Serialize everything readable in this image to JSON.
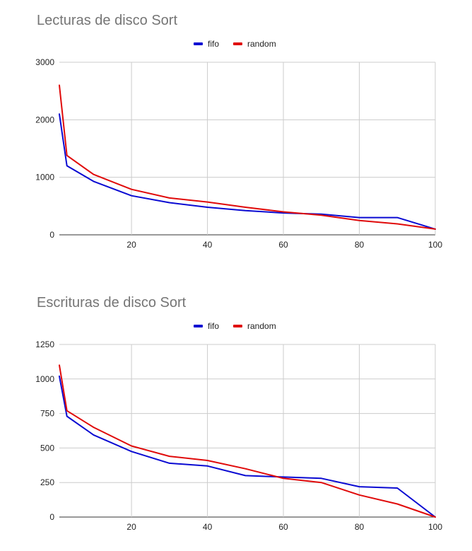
{
  "chart_data": [
    {
      "type": "line",
      "title": "Lecturas de disco Sort",
      "xlabel": "",
      "ylabel": "",
      "xlim": [
        1,
        100
      ],
      "ylim": [
        0,
        3000
      ],
      "xticks": [
        20,
        40,
        60,
        80,
        100
      ],
      "yticks": [
        0,
        1000,
        2000,
        3000
      ],
      "grid": true,
      "legend_position": "top",
      "series": [
        {
          "name": "fifo",
          "color": "#0a0ad2",
          "x": [
            1,
            3,
            10,
            20,
            30,
            40,
            50,
            60,
            70,
            80,
            90,
            100
          ],
          "y": [
            2100,
            1200,
            930,
            680,
            560,
            480,
            420,
            380,
            360,
            300,
            300,
            100
          ]
        },
        {
          "name": "random",
          "color": "#e00a0a",
          "x": [
            1,
            3,
            10,
            20,
            30,
            40,
            50,
            60,
            70,
            80,
            90,
            100
          ],
          "y": [
            2600,
            1380,
            1050,
            790,
            640,
            570,
            480,
            400,
            340,
            250,
            190,
            100
          ]
        }
      ]
    },
    {
      "type": "line",
      "title": "Escrituras de disco Sort",
      "xlabel": "",
      "ylabel": "",
      "xlim": [
        1,
        100
      ],
      "ylim": [
        0,
        1250
      ],
      "xticks": [
        20,
        40,
        60,
        80,
        100
      ],
      "yticks": [
        0,
        250,
        500,
        750,
        1000,
        1250
      ],
      "grid": true,
      "legend_position": "top",
      "series": [
        {
          "name": "fifo",
          "color": "#0a0ad2",
          "x": [
            1,
            3,
            10,
            20,
            30,
            40,
            50,
            60,
            70,
            80,
            90,
            100
          ],
          "y": [
            1020,
            730,
            595,
            475,
            390,
            370,
            300,
            290,
            280,
            220,
            210,
            0
          ]
        },
        {
          "name": "random",
          "color": "#e00a0a",
          "x": [
            1,
            3,
            10,
            20,
            30,
            40,
            50,
            60,
            70,
            80,
            90,
            100
          ],
          "y": [
            1100,
            770,
            650,
            515,
            440,
            410,
            350,
            280,
            250,
            160,
            95,
            0
          ]
        }
      ]
    }
  ]
}
